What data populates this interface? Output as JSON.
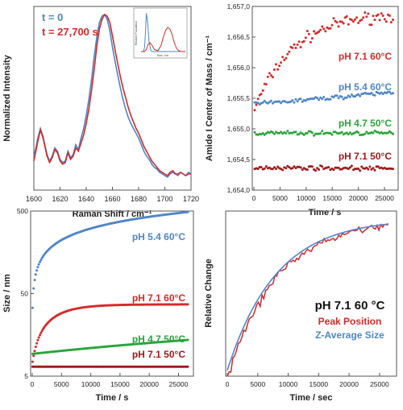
{
  "colors": {
    "red": "#d42a2a",
    "blue": "#4f86c6",
    "green": "#2aa43a",
    "darkred": "#9e1a1a",
    "axis": "#555555",
    "text": "#222222"
  },
  "chart_data": [
    {
      "type": "line",
      "panel": "top-left",
      "xlabel": "Raman Shift / cm⁻¹",
      "ylabel": "Normalized Intensity",
      "xlim": [
        1600,
        1720
      ],
      "xticks": [
        "1600",
        "1620",
        "1640",
        "1660",
        "1680",
        "1700",
        "1720"
      ],
      "legend": [
        "t  = 0",
        "t = 27,700 s"
      ],
      "series": [
        {
          "name": "t  = 0",
          "color": "blue",
          "x": [
            1600,
            1603,
            1605,
            1607,
            1610,
            1612,
            1614,
            1616,
            1618,
            1620,
            1622,
            1624,
            1626,
            1628,
            1630,
            1632,
            1634,
            1636,
            1638,
            1640,
            1642,
            1644,
            1646,
            1648,
            1650,
            1652,
            1654,
            1656,
            1658,
            1660,
            1662,
            1664,
            1666,
            1668,
            1670,
            1672,
            1674,
            1676,
            1678,
            1680,
            1682,
            1684,
            1686,
            1688,
            1690,
            1692,
            1694,
            1696,
            1698,
            1700,
            1702,
            1704,
            1706,
            1708,
            1710,
            1712,
            1714,
            1716,
            1718,
            1720
          ],
          "y": [
            0.12,
            0.24,
            0.3,
            0.25,
            0.14,
            0.1,
            0.13,
            0.18,
            0.16,
            0.11,
            0.09,
            0.1,
            0.16,
            0.12,
            0.14,
            0.2,
            0.17,
            0.24,
            0.3,
            0.38,
            0.48,
            0.6,
            0.74,
            0.86,
            0.95,
            0.99,
            1.0,
            0.97,
            0.9,
            0.8,
            0.71,
            0.63,
            0.55,
            0.48,
            0.42,
            0.37,
            0.33,
            0.3,
            0.27,
            0.24,
            0.2,
            0.16,
            0.13,
            0.11,
            0.08,
            0.06,
            0.05,
            0.03,
            0.02,
            0.01,
            0.0,
            0.02,
            0.03,
            0.02,
            0.01,
            0.03,
            0.02,
            0.01,
            0.03,
            0.02
          ]
        },
        {
          "name": "t = 27,700 s",
          "color": "red",
          "x": [
            1600,
            1603,
            1605,
            1607,
            1610,
            1612,
            1614,
            1616,
            1618,
            1620,
            1622,
            1624,
            1626,
            1628,
            1630,
            1632,
            1634,
            1636,
            1638,
            1640,
            1642,
            1644,
            1646,
            1648,
            1650,
            1652,
            1654,
            1656,
            1658,
            1660,
            1662,
            1664,
            1666,
            1668,
            1670,
            1672,
            1674,
            1676,
            1678,
            1680,
            1682,
            1684,
            1686,
            1688,
            1690,
            1692,
            1694,
            1696,
            1698,
            1700,
            1702,
            1704,
            1706,
            1708,
            1710,
            1712,
            1714,
            1716,
            1718,
            1720
          ],
          "y": [
            0.1,
            0.22,
            0.29,
            0.24,
            0.13,
            0.09,
            0.12,
            0.17,
            0.15,
            0.1,
            0.08,
            0.09,
            0.15,
            0.11,
            0.13,
            0.18,
            0.16,
            0.21,
            0.26,
            0.33,
            0.42,
            0.53,
            0.66,
            0.8,
            0.91,
            0.97,
            1.0,
            0.99,
            0.95,
            0.87,
            0.78,
            0.7,
            0.62,
            0.55,
            0.49,
            0.43,
            0.38,
            0.34,
            0.3,
            0.27,
            0.23,
            0.19,
            0.16,
            0.13,
            0.1,
            0.08,
            0.06,
            0.04,
            0.03,
            0.02,
            0.01,
            0.03,
            0.04,
            0.02,
            0.02,
            0.03,
            0.02,
            0.01,
            0.02,
            0.02
          ]
        }
      ],
      "inset": {
        "ylabel": "Relative Population",
        "xlabel": "Size / nm",
        "series": [
          {
            "color": "blue",
            "x": [
              0.0,
              0.05,
              0.08,
              0.1,
              0.12,
              0.15,
              0.18,
              0.22,
              0.25,
              0.3,
              0.35,
              0.4,
              0.45,
              0.5,
              0.6,
              0.7,
              0.8,
              0.9,
              1.0
            ],
            "y": [
              0,
              0,
              0.1,
              0.5,
              0.95,
              0.7,
              0.25,
              0.02,
              0,
              0,
              0,
              0,
              0,
              0,
              0,
              0,
              0,
              0,
              0
            ]
          },
          {
            "color": "red",
            "x": [
              0.0,
              0.08,
              0.12,
              0.16,
              0.2,
              0.25,
              0.3,
              0.38,
              0.45,
              0.5,
              0.55,
              0.6,
              0.65,
              0.7,
              0.75,
              0.8,
              0.85,
              0.9,
              1.0
            ],
            "y": [
              0,
              0,
              0.05,
              0.18,
              0.22,
              0.15,
              0.05,
              0.02,
              0.15,
              0.35,
              0.52,
              0.6,
              0.56,
              0.42,
              0.22,
              0.08,
              0.02,
              0,
              0
            ]
          }
        ]
      }
    },
    {
      "type": "scatter",
      "panel": "top-right",
      "xlabel": "Time / s",
      "ylabel": "Amide I Center of Mass / cm⁻¹",
      "xlim": [
        0,
        27000
      ],
      "ylim": [
        1654.0,
        1657.0
      ],
      "xticks": [
        0,
        5000,
        10000,
        15000,
        20000,
        25000
      ],
      "yticks": [
        1654.0,
        1654.5,
        1655.0,
        1655.5,
        1656.0,
        1656.5,
        1657.0
      ],
      "ytick_labels": [
        "1,654,0",
        "1,654,5",
        "1,655,0",
        "1,655,5",
        "1,656,0",
        "1,656,5",
        "1,657,0"
      ],
      "series": [
        {
          "name": "pH 7.1 60°C",
          "color": "red",
          "model": "saturating",
          "start": 1655.3,
          "end": 1656.9,
          "tau": 7500,
          "noise": 0.14
        },
        {
          "name": "pH 5.4 60°C",
          "color": "blue",
          "model": "linear",
          "start": 1655.4,
          "end": 1655.6,
          "noise": 0.05
        },
        {
          "name": "pH 4.7 50°C",
          "color": "green",
          "model": "linear",
          "start": 1654.93,
          "end": 1654.93,
          "noise": 0.05
        },
        {
          "name": "pH 7.1 50°C",
          "color": "darkred",
          "model": "linear",
          "start": 1654.37,
          "end": 1654.35,
          "noise": 0.05
        }
      ]
    },
    {
      "type": "scatter",
      "panel": "bottom-left",
      "xlabel": "Time / s",
      "ylabel": "Size / nm",
      "xlim": [
        0,
        27000
      ],
      "ylim": [
        5,
        500
      ],
      "log_y": true,
      "xticks": [
        0,
        5000,
        10000,
        15000,
        20000,
        25000
      ],
      "yticks": [
        5,
        50,
        500
      ],
      "series": [
        {
          "name": "pH 5.4 60°C",
          "color": "blue",
          "model": "power",
          "a": 3.6,
          "b": 0.48,
          "y0": 8
        },
        {
          "name": "pH 7.1 60°C",
          "color": "red",
          "model": "saturating",
          "start": 7,
          "end": 37,
          "tau": 3800
        },
        {
          "name": "pH 4.7 50°C",
          "color": "green",
          "model": "linear",
          "start": 9.3,
          "end": 13.8
        },
        {
          "name": "pH 7.1 50°C",
          "color": "darkred",
          "model": "linear",
          "start": 6.5,
          "end": 6.5
        }
      ]
    },
    {
      "type": "line",
      "panel": "bottom-right",
      "xlabel": "Time / sec",
      "ylabel": "Relative Change",
      "xlim": [
        0,
        27000
      ],
      "xticks": [
        0,
        5000,
        10000,
        15000,
        20000,
        25000
      ],
      "title": "pH 7.1 60 °C",
      "series": [
        {
          "name": "Peak Position",
          "color": "red",
          "model": "saturating-noisy",
          "tau": 9000
        },
        {
          "name": "Z-Average Size",
          "color": "blue",
          "model": "saturating",
          "tau": 9000
        }
      ]
    }
  ]
}
